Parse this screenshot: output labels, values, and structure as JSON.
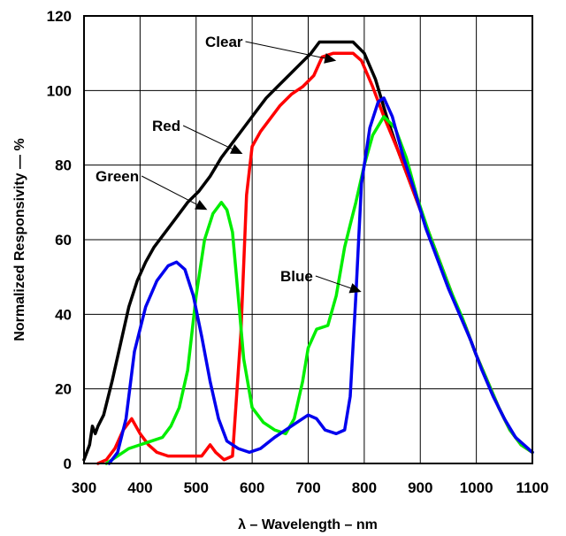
{
  "chart_data": {
    "type": "line",
    "xlabel": "λ – Wavelength – nm",
    "ylabel": "Normalized Responsivity — %",
    "xlim": [
      300,
      1100
    ],
    "ylim": [
      0,
      120
    ],
    "xticks": [
      300,
      400,
      500,
      600,
      700,
      800,
      900,
      1000,
      1100
    ],
    "yticks": [
      0,
      20,
      40,
      60,
      80,
      100,
      120
    ],
    "grid": true,
    "legend": "none",
    "series": [
      {
        "name": "Clear",
        "color": "#000000",
        "points": [
          [
            300,
            1
          ],
          [
            310,
            5
          ],
          [
            315,
            10
          ],
          [
            320,
            8
          ],
          [
            325,
            10
          ],
          [
            335,
            13
          ],
          [
            350,
            22
          ],
          [
            365,
            32
          ],
          [
            380,
            42
          ],
          [
            395,
            49
          ],
          [
            410,
            54
          ],
          [
            425,
            58
          ],
          [
            445,
            62
          ],
          [
            465,
            66
          ],
          [
            485,
            70
          ],
          [
            505,
            73
          ],
          [
            525,
            77
          ],
          [
            545,
            82
          ],
          [
            565,
            86
          ],
          [
            585,
            90
          ],
          [
            605,
            94
          ],
          [
            625,
            98
          ],
          [
            645,
            101
          ],
          [
            665,
            104
          ],
          [
            685,
            107
          ],
          [
            705,
            110
          ],
          [
            720,
            113
          ],
          [
            740,
            113
          ],
          [
            760,
            113
          ],
          [
            780,
            113
          ],
          [
            800,
            110
          ],
          [
            820,
            103
          ],
          [
            840,
            93
          ],
          [
            860,
            84
          ],
          [
            880,
            76
          ],
          [
            900,
            68
          ],
          [
            920,
            60
          ],
          [
            940,
            52
          ],
          [
            960,
            44
          ],
          [
            980,
            37
          ],
          [
            1000,
            29
          ],
          [
            1020,
            22
          ],
          [
            1040,
            15
          ],
          [
            1060,
            9
          ],
          [
            1080,
            5
          ],
          [
            1100,
            3
          ]
        ]
      },
      {
        "name": "Red",
        "color": "#ff0000",
        "points": [
          [
            325,
            0
          ],
          [
            340,
            1
          ],
          [
            355,
            4
          ],
          [
            370,
            9
          ],
          [
            385,
            12
          ],
          [
            400,
            8
          ],
          [
            415,
            5
          ],
          [
            430,
            3
          ],
          [
            450,
            2
          ],
          [
            470,
            2
          ],
          [
            490,
            2
          ],
          [
            510,
            2
          ],
          [
            525,
            5
          ],
          [
            535,
            3
          ],
          [
            550,
            1
          ],
          [
            565,
            2
          ],
          [
            580,
            35
          ],
          [
            590,
            72
          ],
          [
            600,
            85
          ],
          [
            615,
            89
          ],
          [
            630,
            92
          ],
          [
            650,
            96
          ],
          [
            670,
            99
          ],
          [
            690,
            101
          ],
          [
            710,
            104
          ],
          [
            725,
            109
          ],
          [
            745,
            110
          ],
          [
            765,
            110
          ],
          [
            780,
            110
          ],
          [
            795,
            108
          ],
          [
            815,
            101
          ],
          [
            835,
            93
          ],
          [
            860,
            84
          ],
          [
            880,
            76
          ],
          [
            900,
            68
          ],
          [
            920,
            60
          ],
          [
            940,
            52
          ],
          [
            960,
            44
          ],
          [
            980,
            37
          ],
          [
            1000,
            29
          ],
          [
            1020,
            22
          ],
          [
            1040,
            15
          ],
          [
            1060,
            9
          ],
          [
            1080,
            5
          ],
          [
            1100,
            3
          ]
        ]
      },
      {
        "name": "Green",
        "color": "#00ee00",
        "points": [
          [
            340,
            0
          ],
          [
            360,
            2
          ],
          [
            380,
            4
          ],
          [
            400,
            5
          ],
          [
            420,
            6
          ],
          [
            440,
            7
          ],
          [
            455,
            10
          ],
          [
            470,
            15
          ],
          [
            485,
            25
          ],
          [
            500,
            45
          ],
          [
            515,
            60
          ],
          [
            530,
            67
          ],
          [
            545,
            70
          ],
          [
            555,
            68
          ],
          [
            565,
            62
          ],
          [
            575,
            45
          ],
          [
            585,
            28
          ],
          [
            600,
            15
          ],
          [
            620,
            11
          ],
          [
            640,
            9
          ],
          [
            660,
            8
          ],
          [
            675,
            12
          ],
          [
            690,
            22
          ],
          [
            700,
            31
          ],
          [
            715,
            36
          ],
          [
            735,
            37
          ],
          [
            750,
            45
          ],
          [
            765,
            58
          ],
          [
            775,
            64
          ],
          [
            785,
            70
          ],
          [
            800,
            80
          ],
          [
            815,
            88
          ],
          [
            835,
            93
          ],
          [
            855,
            90
          ],
          [
            875,
            82
          ],
          [
            895,
            71
          ],
          [
            915,
            62
          ],
          [
            935,
            54
          ],
          [
            955,
            46
          ],
          [
            975,
            39
          ],
          [
            1000,
            29
          ],
          [
            1020,
            22
          ],
          [
            1040,
            15
          ],
          [
            1060,
            9
          ],
          [
            1080,
            5
          ],
          [
            1100,
            3
          ]
        ]
      },
      {
        "name": "Blue",
        "color": "#0000ee",
        "points": [
          [
            345,
            0
          ],
          [
            360,
            3
          ],
          [
            375,
            12
          ],
          [
            390,
            30
          ],
          [
            410,
            42
          ],
          [
            430,
            49
          ],
          [
            450,
            53
          ],
          [
            465,
            54
          ],
          [
            480,
            52
          ],
          [
            495,
            45
          ],
          [
            510,
            34
          ],
          [
            525,
            22
          ],
          [
            540,
            12
          ],
          [
            555,
            6
          ],
          [
            575,
            4
          ],
          [
            595,
            3
          ],
          [
            615,
            4
          ],
          [
            640,
            7
          ],
          [
            660,
            9
          ],
          [
            680,
            11
          ],
          [
            700,
            13
          ],
          [
            715,
            12
          ],
          [
            730,
            9
          ],
          [
            750,
            8
          ],
          [
            765,
            9
          ],
          [
            775,
            18
          ],
          [
            785,
            45
          ],
          [
            795,
            75
          ],
          [
            810,
            90
          ],
          [
            825,
            97
          ],
          [
            835,
            98
          ],
          [
            850,
            93
          ],
          [
            870,
            82
          ],
          [
            890,
            73
          ],
          [
            910,
            63
          ],
          [
            930,
            55
          ],
          [
            950,
            47
          ],
          [
            970,
            40
          ],
          [
            990,
            33
          ],
          [
            1010,
            25
          ],
          [
            1030,
            18
          ],
          [
            1050,
            12
          ],
          [
            1070,
            7
          ],
          [
            1085,
            5
          ],
          [
            1100,
            3
          ]
        ]
      }
    ],
    "annotations": [
      {
        "text": "Clear",
        "label_at": [
          232,
          53
        ],
        "arrow_to": [
          750,
          108
        ]
      },
      {
        "text": "Red",
        "label_at": [
          172,
          148
        ],
        "arrow_to": [
          583,
          83
        ]
      },
      {
        "text": "Green",
        "label_at": [
          108,
          205
        ],
        "arrow_to": [
          520,
          68
        ]
      },
      {
        "text": "Blue",
        "label_at": [
          317,
          318
        ],
        "arrow_to": [
          795,
          46
        ]
      }
    ]
  }
}
